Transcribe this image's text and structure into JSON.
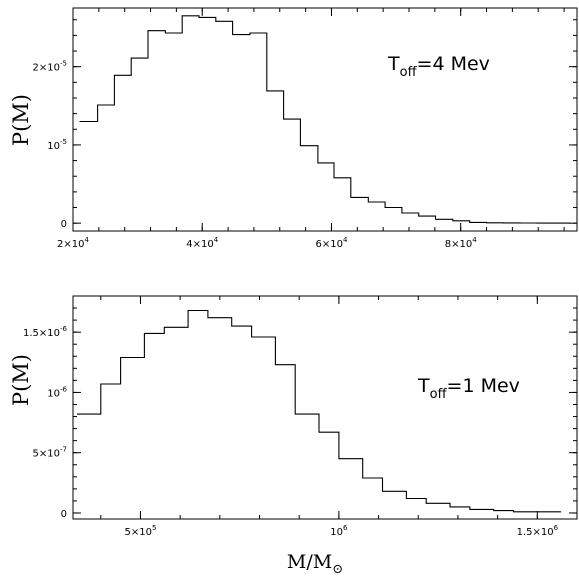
{
  "chart_data": [
    {
      "type": "histogram",
      "ylabel": "P(M)",
      "xlabel": "",
      "annotation": {
        "T": "T",
        "sub": "off",
        "rest": "=4  Mev"
      },
      "xlim": [
        20000,
        98000
      ],
      "ylim": [
        -1000000,
        27500000
      ],
      "x_ticks": [
        20000,
        40000,
        60000,
        80000
      ],
      "x_tick_labels": [
        {
          "base": "2×10",
          "exp": "4"
        },
        {
          "base": "4×10",
          "exp": "4"
        },
        {
          "base": "6×10",
          "exp": "4"
        },
        {
          "base": "8×10",
          "exp": "4"
        }
      ],
      "y_ticks": [
        0,
        10000000,
        20000000
      ],
      "y_tick_labels": [
        {
          "base": "0",
          "exp": ""
        },
        {
          "base": "10",
          "exp": "-5"
        },
        {
          "base": "2×10",
          "exp": "-5"
        }
      ],
      "y_unit": 1e-12,
      "bin_edges": [
        21000,
        23800,
        26400,
        29000,
        31600,
        34300,
        36900,
        39500,
        42100,
        44700,
        47400,
        50000,
        52600,
        55200,
        57900,
        60400,
        63000,
        65700,
        68300,
        70900,
        73500,
        76100,
        78800,
        81400,
        84000,
        86600,
        89200,
        91800,
        94500,
        97000
      ],
      "values": [
        13000000,
        15100000,
        18900000,
        21100000,
        24600000,
        24300000,
        26500000,
        26300000,
        25800000,
        24100000,
        24300000,
        16900000,
        13300000,
        9900000,
        7700000,
        5800000,
        3300000,
        2700000,
        2000000,
        1300000,
        900000,
        500000,
        300000,
        100000,
        50000,
        30000,
        20000,
        10000,
        5000
      ]
    },
    {
      "type": "histogram",
      "ylabel": "P(M)",
      "xlabel": "M/M",
      "xlabel_sub": "⊙",
      "annotation": {
        "T": "T",
        "sub": "off",
        "rest": "=1  Mev"
      },
      "xlim": [
        330000,
        1600000
      ],
      "ylim": [
        -50000000000,
        1800000000000
      ],
      "x_ticks": [
        500000,
        1000000,
        1500000
      ],
      "x_tick_labels": [
        {
          "base": "5×10",
          "exp": "5"
        },
        {
          "base": "10",
          "exp": "6"
        },
        {
          "base": "1.5×10",
          "exp": "6"
        }
      ],
      "y_ticks": [
        0,
        500000000000,
        1000000000000,
        1500000000000
      ],
      "y_tick_labels": [
        {
          "base": "0",
          "exp": ""
        },
        {
          "base": "5×10",
          "exp": "-7"
        },
        {
          "base": "10",
          "exp": "-6"
        },
        {
          "base": "1.5×10",
          "exp": "-6"
        }
      ],
      "y_unit": 1e-18,
      "bin_edges": [
        340000,
        400000,
        450000,
        510000,
        560000,
        620000,
        670000,
        730000,
        780000,
        840000,
        890000,
        950000,
        1000000,
        1060000,
        1110000,
        1170000,
        1220000,
        1280000,
        1330000,
        1390000,
        1440000,
        1500000,
        1560000
      ],
      "values": [
        820000000000,
        1070000000000,
        1290000000000,
        1490000000000,
        1540000000000,
        1680000000000,
        1620000000000,
        1550000000000,
        1460000000000,
        1230000000000,
        820000000000,
        670000000000,
        450000000000,
        290000000000,
        180000000000,
        120000000000,
        80000000000,
        50000000000,
        30000000000,
        20000000000,
        10000000000,
        10000000000
      ]
    }
  ]
}
